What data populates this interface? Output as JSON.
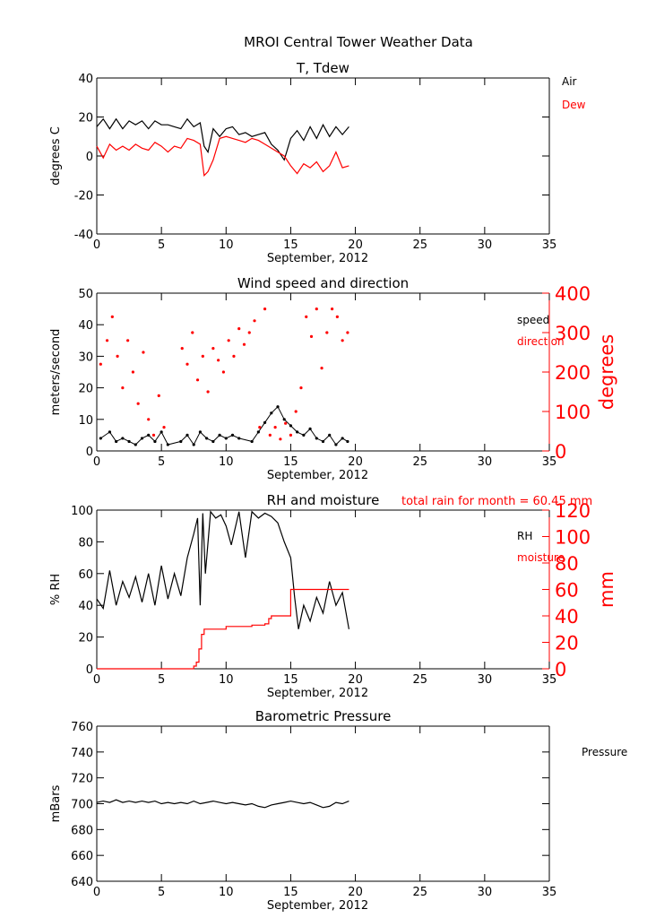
{
  "figure_title": "MROI Central Tower Weather Data",
  "colors": {
    "black": "#000000",
    "red": "#ff0000"
  },
  "chart_data": [
    {
      "id": "temp",
      "type": "line",
      "title": "T, Tdew",
      "xlabel": "September, 2012",
      "ylabel": "degrees C",
      "xlim": [
        0,
        35
      ],
      "ylim": [
        -40,
        40
      ],
      "xticks": [
        0,
        5,
        10,
        15,
        20,
        25,
        30,
        35
      ],
      "yticks": [
        -40,
        -20,
        0,
        20,
        40
      ],
      "legend": [
        "Air",
        "Dew"
      ],
      "series": [
        {
          "name": "Air",
          "color": "#000000",
          "x": [
            0,
            0.5,
            1,
            1.5,
            2,
            2.5,
            3,
            3.5,
            4,
            4.5,
            5,
            5.5,
            6,
            6.5,
            7,
            7.5,
            8,
            8.3,
            8.6,
            9,
            9.5,
            10,
            10.5,
            11,
            11.5,
            12,
            12.5,
            13,
            13.5,
            14,
            14.5,
            15,
            15.5,
            16,
            16.5,
            17,
            17.5,
            18,
            18.5,
            19,
            19.5
          ],
          "y": [
            15,
            19,
            14,
            19,
            14,
            18,
            16,
            18,
            14,
            18,
            16,
            16,
            15,
            14,
            19,
            15,
            17,
            5,
            2,
            14,
            10,
            14,
            15,
            11,
            12,
            10,
            11,
            12,
            6,
            3,
            -2,
            9,
            13,
            8,
            15,
            9,
            16,
            10,
            15,
            11,
            15
          ]
        },
        {
          "name": "Dew",
          "color": "#ff0000",
          "x": [
            0,
            0.5,
            1,
            1.5,
            2,
            2.5,
            3,
            3.5,
            4,
            4.5,
            5,
            5.5,
            6,
            6.5,
            7,
            7.5,
            8,
            8.3,
            8.6,
            9,
            9.5,
            10,
            10.5,
            11,
            11.5,
            12,
            12.5,
            13,
            13.5,
            14,
            14.5,
            15,
            15.5,
            16,
            16.5,
            17,
            17.5,
            18,
            18.5,
            19,
            19.5
          ],
          "y": [
            5,
            -1,
            6,
            3,
            5,
            3,
            6,
            4,
            3,
            7,
            5,
            2,
            5,
            4,
            9,
            8,
            6,
            -10,
            -8,
            -2,
            9,
            10,
            9,
            8,
            7,
            9,
            8,
            6,
            4,
            2,
            0,
            -5,
            -9,
            -4,
            -6,
            -3,
            -8,
            -5,
            2,
            -6,
            -5
          ]
        }
      ]
    },
    {
      "id": "wind",
      "type": "scatter",
      "title": "Wind speed and direction",
      "xlabel": "September, 2012",
      "ylabel": "meters/second",
      "ylabel_right": "degrees",
      "xlim": [
        0,
        35
      ],
      "ylim": [
        0,
        50
      ],
      "ylim_right": [
        0,
        400
      ],
      "xticks": [
        0,
        5,
        10,
        15,
        20,
        25,
        30,
        35
      ],
      "yticks": [
        0,
        10,
        20,
        30,
        40,
        50
      ],
      "yticks_right": [
        0,
        100,
        200,
        300,
        400
      ],
      "legend": [
        "speed",
        "direction"
      ],
      "series": [
        {
          "name": "speed",
          "color": "#000000",
          "x": [
            0.3,
            1,
            1.5,
            2,
            2.5,
            3,
            3.5,
            4,
            4.5,
            5,
            5.5,
            6.5,
            7,
            7.5,
            8,
            8.5,
            9,
            9.5,
            10,
            10.5,
            11,
            12,
            12.5,
            13,
            13.5,
            14,
            14.5,
            15,
            15.5,
            16,
            16.5,
            17,
            17.5,
            18,
            18.5,
            19,
            19.4
          ],
          "y": [
            4,
            6,
            3,
            4,
            3,
            2,
            4,
            5,
            3,
            6,
            2,
            3,
            5,
            2,
            6,
            4,
            3,
            5,
            4,
            5,
            4,
            3,
            6,
            9,
            12,
            14,
            10,
            8,
            6,
            5,
            7,
            4,
            3,
            5,
            2,
            4,
            3
          ]
        },
        {
          "name": "direction",
          "color": "#ff0000",
          "x": [
            0.3,
            0.8,
            1.2,
            1.6,
            2,
            2.4,
            2.8,
            3.2,
            3.6,
            4,
            4.4,
            4.8,
            5.2,
            6.6,
            7,
            7.4,
            7.8,
            8.2,
            8.6,
            9,
            9.4,
            9.8,
            10.2,
            10.6,
            11,
            11.4,
            11.8,
            12.2,
            12.6,
            13,
            13.4,
            13.8,
            14.2,
            14.6,
            15,
            15.4,
            15.8,
            16.2,
            16.6,
            17,
            17.4,
            17.8,
            18.2,
            18.6,
            19,
            19.4
          ],
          "y": [
            220,
            280,
            340,
            240,
            160,
            280,
            200,
            120,
            250,
            80,
            40,
            140,
            60,
            260,
            220,
            300,
            180,
            240,
            150,
            260,
            230,
            200,
            280,
            240,
            310,
            270,
            300,
            330,
            60,
            360,
            40,
            60,
            30,
            70,
            40,
            100,
            160,
            340,
            290,
            360,
            210,
            300,
            360,
            340,
            280,
            300
          ]
        }
      ]
    },
    {
      "id": "rh",
      "type": "line",
      "title": "RH and moisture",
      "annotation": "total rain for month =    60.45 mm",
      "xlabel": "September, 2012",
      "ylabel": "% RH",
      "ylabel_right": "mm",
      "xlim": [
        0,
        35
      ],
      "ylim": [
        0,
        100
      ],
      "ylim_right": [
        0,
        120
      ],
      "xticks": [
        0,
        5,
        10,
        15,
        20,
        25,
        30,
        35
      ],
      "yticks": [
        0,
        20,
        40,
        60,
        80,
        100
      ],
      "yticks_right": [
        0,
        20,
        40,
        60,
        80,
        100,
        120
      ],
      "legend": [
        "RH",
        "moisture"
      ],
      "series": [
        {
          "name": "RH",
          "color": "#000000",
          "x": [
            0,
            0.5,
            1,
            1.5,
            2,
            2.5,
            3,
            3.5,
            4,
            4.5,
            5,
            5.5,
            6,
            6.5,
            7,
            7.5,
            7.8,
            8,
            8.2,
            8.4,
            8.8,
            9.2,
            9.6,
            10,
            10.4,
            11,
            11.5,
            12,
            12.5,
            13,
            13.5,
            14,
            14.5,
            15,
            15.3,
            15.6,
            16,
            16.5,
            17,
            17.5,
            18,
            18.5,
            19,
            19.5
          ],
          "y": [
            44,
            38,
            62,
            40,
            55,
            45,
            58,
            42,
            60,
            40,
            65,
            44,
            60,
            46,
            70,
            85,
            95,
            40,
            98,
            60,
            99,
            95,
            97,
            90,
            78,
            99,
            70,
            99,
            95,
            98,
            96,
            92,
            80,
            70,
            45,
            25,
            40,
            30,
            45,
            35,
            55,
            40,
            48,
            25
          ]
        },
        {
          "name": "moisture",
          "color": "#ff0000",
          "axis": "right",
          "x": [
            0,
            6,
            7,
            7.5,
            7.7,
            7.9,
            8.1,
            8.3,
            10,
            12,
            13,
            13.3,
            13.5,
            15,
            19.5
          ],
          "y": [
            0,
            0,
            0,
            2,
            5,
            15,
            26,
            30,
            32,
            33,
            34,
            38,
            40,
            60,
            60
          ]
        }
      ]
    },
    {
      "id": "pressure",
      "type": "line",
      "title": "Barometric Pressure",
      "xlabel": "September, 2012",
      "ylabel": "mBars",
      "xlim": [
        0,
        35
      ],
      "ylim": [
        640,
        760
      ],
      "xticks": [
        0,
        5,
        10,
        15,
        20,
        25,
        30,
        35
      ],
      "yticks": [
        640,
        660,
        680,
        700,
        720,
        740,
        760
      ],
      "legend": [
        "Pressure"
      ],
      "series": [
        {
          "name": "Pressure",
          "color": "#000000",
          "x": [
            0,
            0.5,
            1,
            1.5,
            2,
            2.5,
            3,
            3.5,
            4,
            4.5,
            5,
            5.5,
            6,
            6.5,
            7,
            7.5,
            8,
            8.5,
            9,
            9.5,
            10,
            10.5,
            11,
            11.5,
            12,
            12.5,
            13,
            13.5,
            14,
            14.5,
            15,
            15.5,
            16,
            16.5,
            17,
            17.5,
            18,
            18.5,
            19,
            19.5
          ],
          "y": [
            701,
            702,
            701,
            703,
            701,
            702,
            701,
            702,
            701,
            702,
            700,
            701,
            700,
            701,
            700,
            702,
            700,
            701,
            702,
            701,
            700,
            701,
            700,
            699,
            700,
            698,
            697,
            699,
            700,
            701,
            702,
            701,
            700,
            701,
            699,
            697,
            698,
            701,
            700,
            702
          ]
        }
      ]
    }
  ]
}
